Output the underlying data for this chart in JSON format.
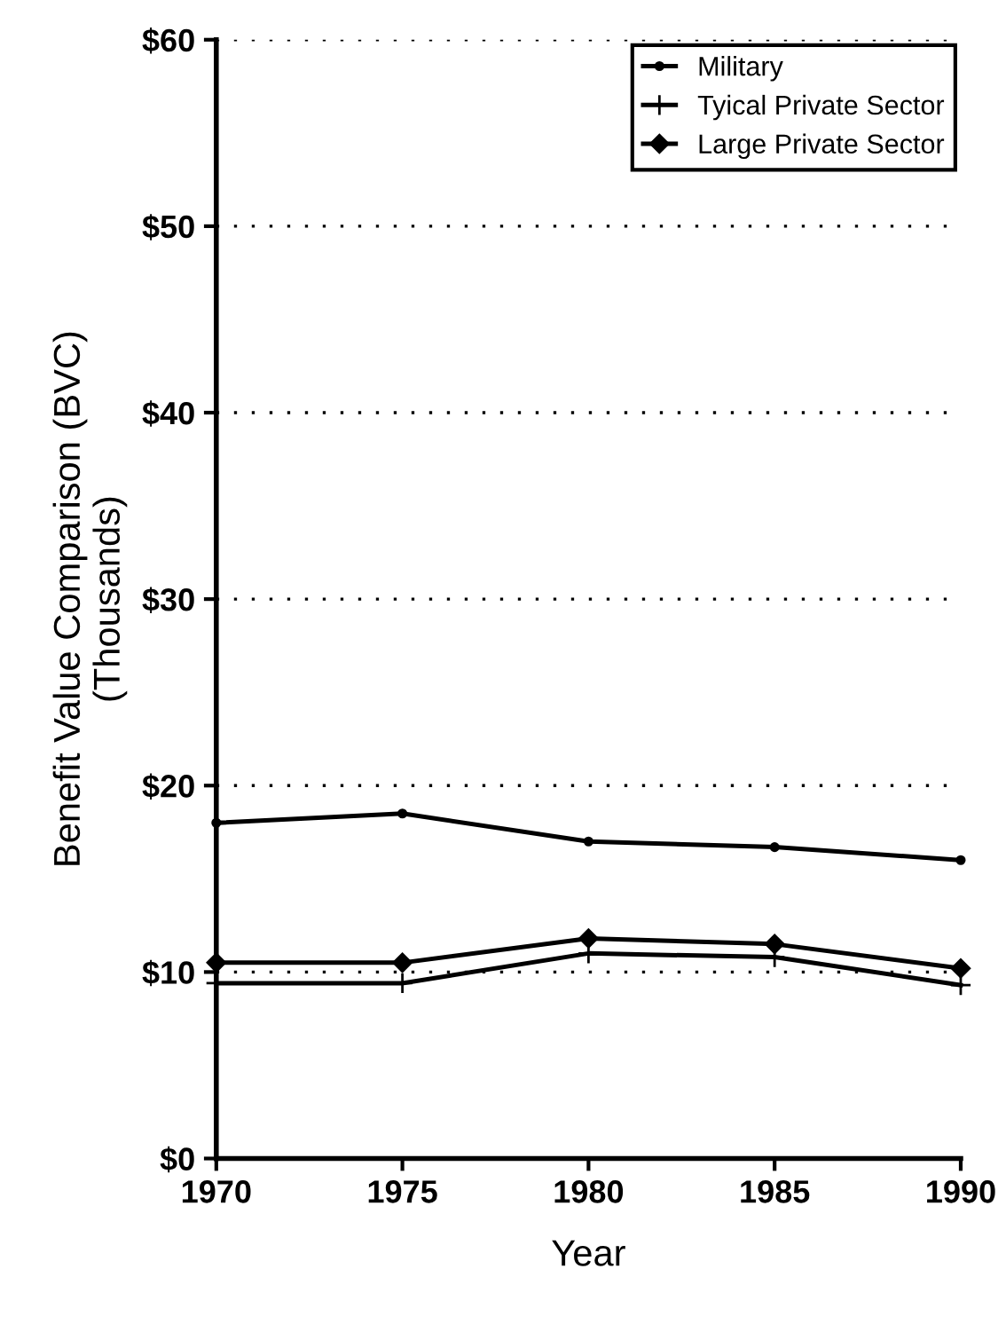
{
  "chart_data": {
    "type": "line",
    "xlabel": "Year",
    "ylabel": "Benefit Value Comparison (BVC)\n(Thousands)",
    "x": [
      1970,
      1975,
      1980,
      1985,
      1990
    ],
    "series": [
      {
        "name": "Military",
        "color": "#000000",
        "marker": "circle",
        "values": [
          18.0,
          18.5,
          17.0,
          16.7,
          16.0
        ]
      },
      {
        "name": "Tyical Private Sector",
        "color": "#000000",
        "marker": "cross",
        "values": [
          9.4,
          9.4,
          11.0,
          10.8,
          9.3
        ]
      },
      {
        "name": "Large Private Sector",
        "color": "#000000",
        "marker": "diamond",
        "values": [
          10.5,
          10.5,
          11.8,
          11.5,
          10.2
        ]
      }
    ],
    "xlim": [
      1970,
      1990
    ],
    "xticks": [
      1970,
      1975,
      1980,
      1985,
      1990
    ],
    "ylim": [
      0,
      60
    ],
    "yticks": [
      {
        "value": 0,
        "label": "$0"
      },
      {
        "value": 10,
        "label": "$10"
      },
      {
        "value": 20,
        "label": "$20"
      },
      {
        "value": 30,
        "label": "$30"
      },
      {
        "value": 40,
        "label": "$40"
      },
      {
        "value": 50,
        "label": "$50"
      },
      {
        "value": 60,
        "label": "$60"
      }
    ],
    "grid": "y",
    "line_style": "solid",
    "legend": "top right"
  }
}
